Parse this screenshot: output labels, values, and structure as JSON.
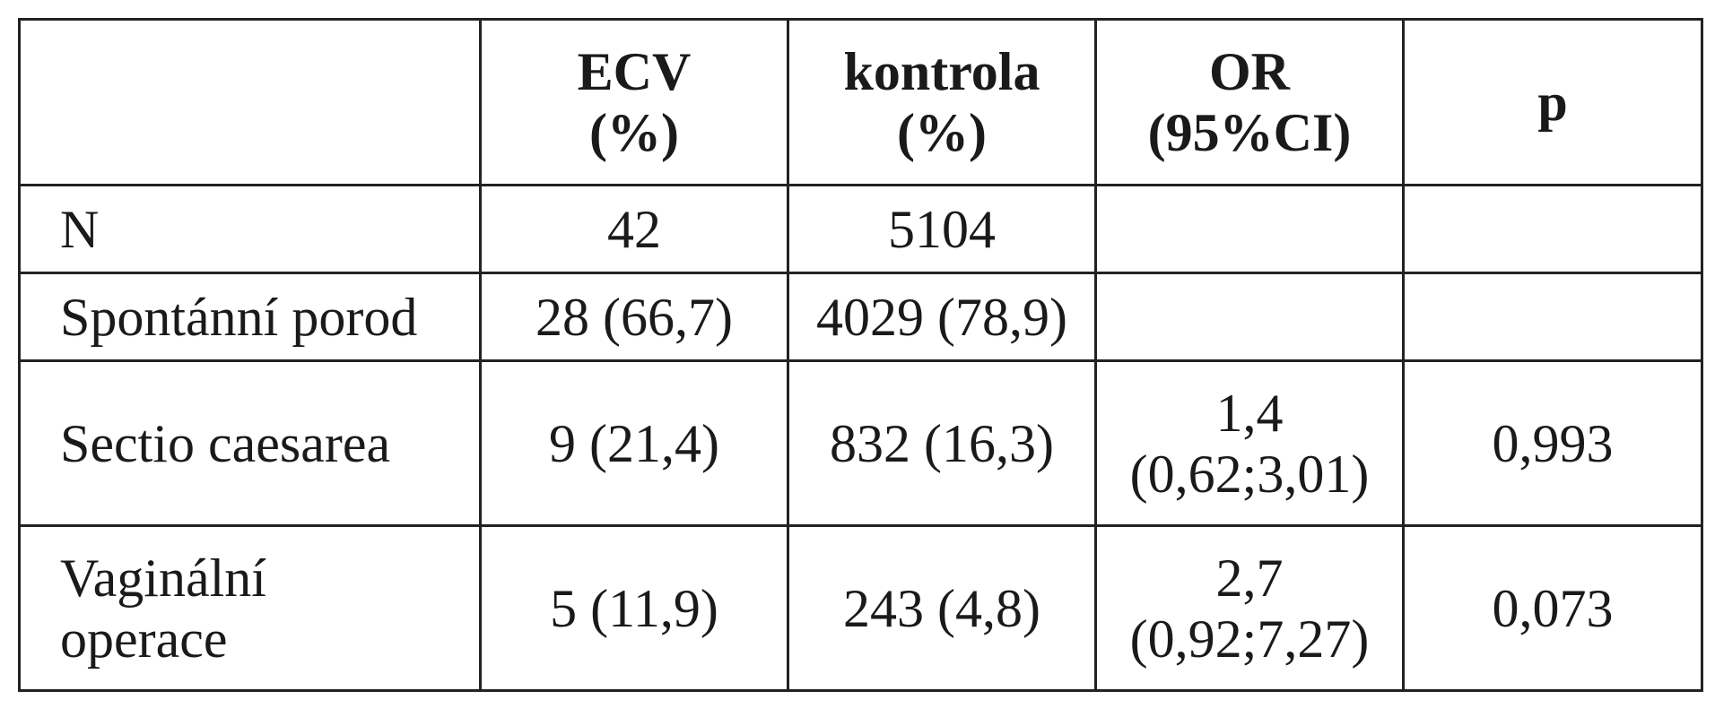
{
  "table": {
    "headers": [
      {
        "lines": [
          "",
          ""
        ]
      },
      {
        "lines": [
          "ECV",
          "(%)"
        ]
      },
      {
        "lines": [
          "kontrola",
          "(%)"
        ]
      },
      {
        "lines": [
          "OR",
          "(95%CI)"
        ]
      },
      {
        "lines": [
          "p",
          ""
        ]
      }
    ],
    "rows": [
      {
        "label": [
          "N",
          ""
        ],
        "ecv": "42",
        "kontrola": "5104",
        "or": [
          "",
          ""
        ],
        "p": ""
      },
      {
        "label": [
          "Spontánní porod",
          ""
        ],
        "ecv": "28 (66,7)",
        "kontrola": "4029 (78,9)",
        "or": [
          "",
          ""
        ],
        "p": ""
      },
      {
        "label": [
          "Sectio caesarea",
          ""
        ],
        "ecv": "9 (21,4)",
        "kontrola": "832 (16,3)",
        "or": [
          "1,4",
          "(0,62;3,01)"
        ],
        "p": "0,993"
      },
      {
        "label": [
          "Vaginální",
          "operace"
        ],
        "ecv": "5 (11,9)",
        "kontrola": "243 (4,8)",
        "or": [
          "2,7",
          "(0,92;7,27)"
        ],
        "p": "0,073"
      }
    ]
  }
}
